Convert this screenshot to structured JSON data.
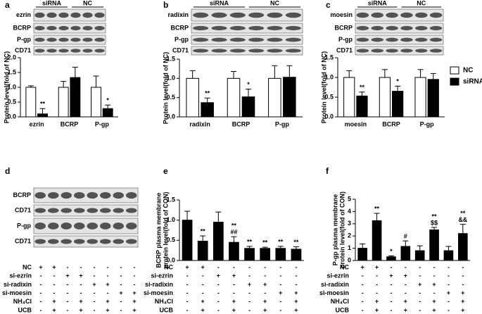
{
  "chart_data": [
    {
      "type": "bar",
      "panel": "a",
      "ylabel": [
        "Protein level(fold of NC)"
      ],
      "categories": [
        "ezrin",
        "BCRP",
        "P-gp"
      ],
      "series": [
        {
          "color": "#ffffff",
          "values": [
            1.0,
            1.0,
            1.0
          ],
          "errors": [
            0.05,
            0.2,
            0.38
          ],
          "annotations": [
            null,
            null,
            null
          ]
        },
        {
          "color": "#000000",
          "values": [
            0.1,
            1.33,
            0.28
          ],
          "errors": [
            0.18,
            0.35,
            0.12
          ],
          "annotations": [
            [
              "**"
            ],
            null,
            [
              "*"
            ]
          ]
        }
      ],
      "ylim": [
        0,
        2
      ],
      "yticks": [
        {
          "value": 0,
          "label": "0.0"
        },
        0.5,
        {
          "value": 1,
          "label": "1.0"
        },
        1.5,
        {
          "value": 2,
          "label": "2.0"
        }
      ],
      "blot": {
        "header": [
          "siRNA",
          "NC"
        ],
        "rows": [
          "ezrin",
          "BCRP",
          "P-gp",
          "CD71"
        ]
      }
    },
    {
      "type": "bar",
      "panel": "b",
      "ylabel": [
        "Protein level(fold of NC)"
      ],
      "categories": [
        "radixin",
        "BCRP",
        "P-gp"
      ],
      "series": [
        {
          "color": "#ffffff",
          "values": [
            1.0,
            1.0,
            1.0
          ],
          "errors": [
            0.2,
            0.18,
            0.33
          ],
          "annotations": [
            null,
            null,
            null
          ]
        },
        {
          "color": "#000000",
          "values": [
            0.37,
            0.52,
            1.03
          ],
          "errors": [
            0.12,
            0.2,
            0.3
          ],
          "annotations": [
            [
              "**"
            ],
            [
              "*"
            ],
            null
          ]
        }
      ],
      "ylim": [
        0,
        1.5
      ],
      "yticks": [
        {
          "value": 0,
          "label": "0.0"
        },
        0.5,
        {
          "value": 1,
          "label": "1.0"
        },
        1.5
      ],
      "blot": {
        "header": [
          "siRNA",
          "NC"
        ],
        "rows": [
          "radixin",
          "BCRP",
          "P-gp",
          "CD71"
        ]
      }
    },
    {
      "type": "bar",
      "panel": "c",
      "ylabel": [
        "Protein level(fold of NC)"
      ],
      "categories": [
        "moesin",
        "BCRP",
        "P-gp"
      ],
      "series": [
        {
          "name": "NC",
          "color": "#ffffff",
          "values": [
            1.0,
            1.0,
            1.0
          ],
          "errors": [
            0.17,
            0.2,
            0.2
          ],
          "annotations": [
            null,
            null,
            null
          ]
        },
        {
          "name": "siRNA",
          "color": "#000000",
          "values": [
            0.53,
            0.65,
            0.95
          ],
          "errors": [
            0.1,
            0.13,
            0.15
          ],
          "annotations": [
            [
              "**"
            ],
            [
              "*"
            ],
            null
          ]
        }
      ],
      "ylim": [
        0,
        1.5
      ],
      "yticks": [
        {
          "value": 0,
          "label": "0.0"
        },
        0.5,
        {
          "value": 1,
          "label": "1.0"
        },
        1.5
      ],
      "legend": "right",
      "blot": {
        "header": [
          "siRNA",
          "NC"
        ],
        "rows": [
          "moesin",
          "BCRP",
          "P-gp",
          "CD71"
        ]
      }
    },
    {
      "type": "bar",
      "panel": "e",
      "ylabel": [
        "BCRP plasma membrane",
        "protein level(fold of CON)"
      ],
      "color": "#000000",
      "values": [
        1.0,
        0.48,
        0.95,
        0.45,
        0.3,
        0.3,
        0.3,
        0.28
      ],
      "errors": [
        0.22,
        0.13,
        0.25,
        0.14,
        0.05,
        0.03,
        0.05,
        0.06
      ],
      "annotations": [
        null,
        [
          "**"
        ],
        null,
        [
          "**",
          "##"
        ],
        [
          "**"
        ],
        [
          "**"
        ],
        [
          "**"
        ],
        [
          "**"
        ]
      ],
      "ylim": [
        0,
        1.5
      ],
      "yticks": [
        {
          "value": 0,
          "label": "0.0"
        },
        0.5,
        {
          "value": 1,
          "label": "1.0"
        },
        1.5
      ],
      "treatments": [
        {
          "name": "NC",
          "marks": [
            "+",
            "+",
            "-",
            "-",
            "-",
            "-",
            "-",
            "-"
          ]
        },
        {
          "name": "si-ezrin",
          "marks": [
            "-",
            "-",
            "+",
            "+",
            "-",
            "-",
            "-",
            "-"
          ]
        },
        {
          "name": "si-radixin",
          "marks": [
            "-",
            "-",
            "-",
            "-",
            "+",
            "+",
            "-",
            "-"
          ]
        },
        {
          "name": "si-moesin",
          "marks": [
            "-",
            "-",
            "-",
            "-",
            "-",
            "-",
            "+",
            "+"
          ]
        },
        {
          "name": "NH₄Cl",
          "marks": [
            "-",
            "+",
            "-",
            "+",
            "-",
            "+",
            "-",
            "+"
          ]
        },
        {
          "name": "UCB",
          "marks": [
            "-",
            "+",
            "-",
            "+",
            "-",
            "+",
            "-",
            "+"
          ]
        }
      ]
    },
    {
      "type": "bar",
      "panel": "f",
      "ylabel": [
        "P-gp plasma membrane",
        "protein level(fold of CON)"
      ],
      "color": "#000000",
      "values": [
        1.0,
        3.25,
        0.3,
        1.15,
        0.8,
        2.5,
        0.8,
        2.2
      ],
      "errors": [
        0.35,
        0.6,
        0.08,
        0.45,
        0.4,
        0.2,
        0.35,
        0.75
      ],
      "annotations": [
        null,
        [
          "**"
        ],
        [
          "*"
        ],
        [
          "#"
        ],
        null,
        [
          "**",
          "$$"
        ],
        null,
        [
          "**",
          "&&"
        ]
      ],
      "ylim": [
        0,
        5
      ],
      "yticks": [
        0,
        1,
        2,
        3,
        4,
        5
      ],
      "treatments": [
        {
          "name": "NC",
          "marks": [
            "+",
            "+",
            "-",
            "-",
            "-",
            "-",
            "-",
            "-"
          ]
        },
        {
          "name": "si-ezrin",
          "marks": [
            "-",
            "-",
            "+",
            "+",
            "-",
            "-",
            "-",
            "-"
          ]
        },
        {
          "name": "si-radixin",
          "marks": [
            "-",
            "-",
            "-",
            "-",
            "+",
            "+",
            "-",
            "-"
          ]
        },
        {
          "name": "si-moesin",
          "marks": [
            "-",
            "-",
            "-",
            "-",
            "-",
            "-",
            "+",
            "+"
          ]
        },
        {
          "name": "NH₄Cl",
          "marks": [
            "-",
            "+",
            "-",
            "+",
            "-",
            "+",
            "-",
            "+"
          ]
        },
        {
          "name": "UCB",
          "marks": [
            "-",
            "+",
            "-",
            "+",
            "-",
            "+",
            "-",
            "+"
          ]
        }
      ]
    }
  ],
  "blot_d": {
    "panel": "d",
    "rows": [
      "BCRP",
      "CD71",
      "P-gp",
      "CD71"
    ],
    "treatments": [
      {
        "name": "NC",
        "marks": [
          "+",
          "+",
          "-",
          "-",
          "-",
          "-",
          "-",
          "-"
        ]
      },
      {
        "name": "si-ezrin",
        "marks": [
          "-",
          "-",
          "+",
          "+",
          "-",
          "-",
          "-",
          "-"
        ]
      },
      {
        "name": "si-radixin",
        "marks": [
          "-",
          "-",
          "-",
          "-",
          "+",
          "+",
          "-",
          "-"
        ]
      },
      {
        "name": "si-moesin",
        "marks": [
          "-",
          "-",
          "-",
          "-",
          "-",
          "-",
          "+",
          "+"
        ]
      },
      {
        "name": "NH₄Cl",
        "marks": [
          "-",
          "+",
          "-",
          "+",
          "-",
          "+",
          "-",
          "+"
        ]
      },
      {
        "name": "UCB",
        "marks": [
          "-",
          "+",
          "-",
          "+",
          "-",
          "+",
          "-",
          "+"
        ]
      }
    ]
  }
}
